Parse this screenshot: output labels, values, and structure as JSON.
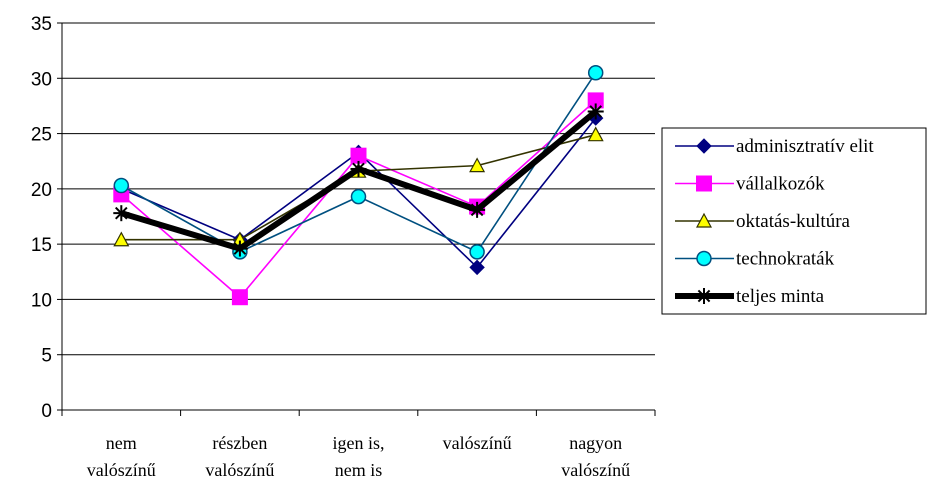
{
  "chart_data": {
    "type": "line",
    "categories": [
      [
        "nem",
        "valószínű"
      ],
      [
        "részben",
        "valószínű"
      ],
      [
        "igen is,",
        "nem is"
      ],
      [
        "valószínű"
      ],
      [
        "nagyon",
        "valószínű"
      ]
    ],
    "y_ticks": [
      "0",
      "5",
      "10",
      "15",
      "20",
      "25",
      "30",
      "35"
    ],
    "ylim": [
      0,
      35
    ],
    "grid": true,
    "legend_position": "right",
    "series": [
      {
        "name": "adminisztratív elit",
        "values": [
          20.0,
          15.4,
          23.3,
          12.9,
          26.4
        ],
        "color": "#000080",
        "marker": "diamond",
        "marker_fill": "#000080",
        "line_width": 1.6
      },
      {
        "name": "vállalkozók",
        "values": [
          19.5,
          10.2,
          23.0,
          18.4,
          28.0
        ],
        "color": "#ff00ff",
        "marker": "square",
        "marker_fill": "#ff00ff",
        "line_width": 1.6
      },
      {
        "name": "oktatás-kultúra",
        "values": [
          15.4,
          15.4,
          21.6,
          22.1,
          24.9
        ],
        "color": "#333300",
        "marker": "triangle",
        "marker_fill": "#ffff00",
        "line_width": 1.6
      },
      {
        "name": "technokraták",
        "values": [
          20.3,
          14.3,
          19.3,
          14.3,
          30.5
        ],
        "color": "#005080",
        "marker": "circle",
        "marker_fill": "#00ffff",
        "line_width": 1.6
      },
      {
        "name": "teljes minta",
        "values": [
          17.8,
          14.6,
          21.8,
          18.1,
          27.0
        ],
        "color": "#000000",
        "marker": "star",
        "marker_fill": "none",
        "line_width": 6
      }
    ]
  }
}
